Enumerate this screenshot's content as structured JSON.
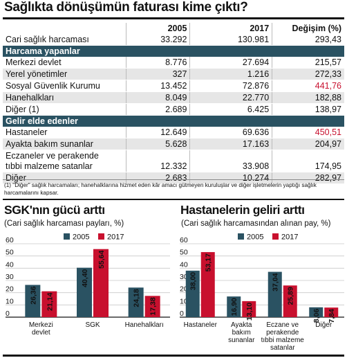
{
  "title": "Sağlıkta dönüşümün faturası kime çıktı?",
  "table": {
    "headers": [
      "",
      "2005",
      "2017",
      "Değişim (%)"
    ],
    "rows": [
      {
        "type": "data",
        "label": "Cari sağlık harcaması",
        "v2005": "33.292",
        "v2017": "130.981",
        "chg": "293,43",
        "red": false
      },
      {
        "type": "section",
        "label": "Harcama yapanlar"
      },
      {
        "type": "data",
        "label": "Merkezi devlet",
        "v2005": "8.776",
        "v2017": "27.694",
        "chg": "215,57",
        "red": false
      },
      {
        "type": "data",
        "label": "Yerel yönetimler",
        "v2005": "327",
        "v2017": "1.216",
        "chg": "272,33",
        "red": false
      },
      {
        "type": "data",
        "label": "Sosyal Güvenlik Kurumu",
        "v2005": "13.452",
        "v2017": "72.876",
        "chg": "441,76",
        "red": true
      },
      {
        "type": "data",
        "label": "Hanehalkları",
        "v2005": "8.049",
        "v2017": "22.770",
        "chg": "182,88",
        "red": false
      },
      {
        "type": "data",
        "label": "Diğer (1)",
        "v2005": "2.689",
        "v2017": "6.425",
        "chg": "138,97",
        "red": false
      },
      {
        "type": "section",
        "label": "Gelir elde edenler"
      },
      {
        "type": "data",
        "label": "Hastaneler",
        "v2005": "12.649",
        "v2017": "69.636",
        "chg": "450,51",
        "red": true
      },
      {
        "type": "data",
        "label": "Ayakta bakım sunanlar",
        "v2005": "5.628",
        "v2017": "17.163",
        "chg": "204,97",
        "red": false
      },
      {
        "type": "data2",
        "label": "Eczaneler ve perakende",
        "label2": "tıbbi malzeme satanlar",
        "v2005": "12.332",
        "v2017": "33.908",
        "chg": "174,95",
        "red": false
      },
      {
        "type": "data",
        "label": "Diğer",
        "v2005": "2.683",
        "v2017": "10.274",
        "chg": "282,97",
        "red": false
      }
    ]
  },
  "footnote": "(1) \"Diğer\" sağlık harcamaları; hanehalklarına hizmet eden kâr amacı gütmeyen kuruluşlar ve diğer işletmelerin yaptığı sağlık harcamalarını kapsar.",
  "colors": {
    "s2005": "#2a5262",
    "s2017": "#c8102e"
  },
  "chart_data": [
    {
      "type": "bar",
      "title": "SGK'nın gücü arttı",
      "subtitle": "(Cari sağlık harcaması payları, %)",
      "categories": [
        [
          "Merkezi",
          "devlet"
        ],
        [
          "SGK"
        ],
        [
          "Hanehalkları"
        ]
      ],
      "series": [
        {
          "name": "2005",
          "values": [
            26.36,
            40.4,
            24.18
          ],
          "labels": [
            "26,36",
            "40,40",
            "24,18"
          ]
        },
        {
          "name": "2017",
          "values": [
            21.14,
            55.64,
            17.38
          ],
          "labels": [
            "21,14",
            "55,64",
            "17,38"
          ]
        }
      ],
      "ylim": [
        0,
        60
      ],
      "yticks": [
        "0",
        "10",
        "20",
        "30",
        "40",
        "50",
        "60"
      ],
      "legend": "top-right"
    },
    {
      "type": "bar",
      "title": "Hastanelerin geliri arttı",
      "subtitle": "(Cari sağlık harcamasından alınan pay, %)",
      "categories": [
        [
          "Hastaneler"
        ],
        [
          "Ayakta",
          "bakım",
          "sunanlar"
        ],
        [
          "Eczane ve",
          "perakende",
          "tıbbi malzeme",
          "satanlar"
        ],
        [
          "Diğer"
        ]
      ],
      "series": [
        {
          "name": "2005",
          "values": [
            38.0,
            16.9,
            37.04,
            8.06
          ],
          "labels": [
            "38,00",
            "16,90",
            "37,04",
            "8,06"
          ]
        },
        {
          "name": "2017",
          "values": [
            53.17,
            13.1,
            25.89,
            7.84
          ],
          "labels": [
            "53,17",
            "13,10",
            "25,89",
            "7,84"
          ]
        }
      ],
      "ylim": [
        0,
        60
      ],
      "yticks": [
        "0",
        "10",
        "20",
        "30",
        "40",
        "50",
        "60"
      ],
      "legend": "top-right"
    }
  ]
}
